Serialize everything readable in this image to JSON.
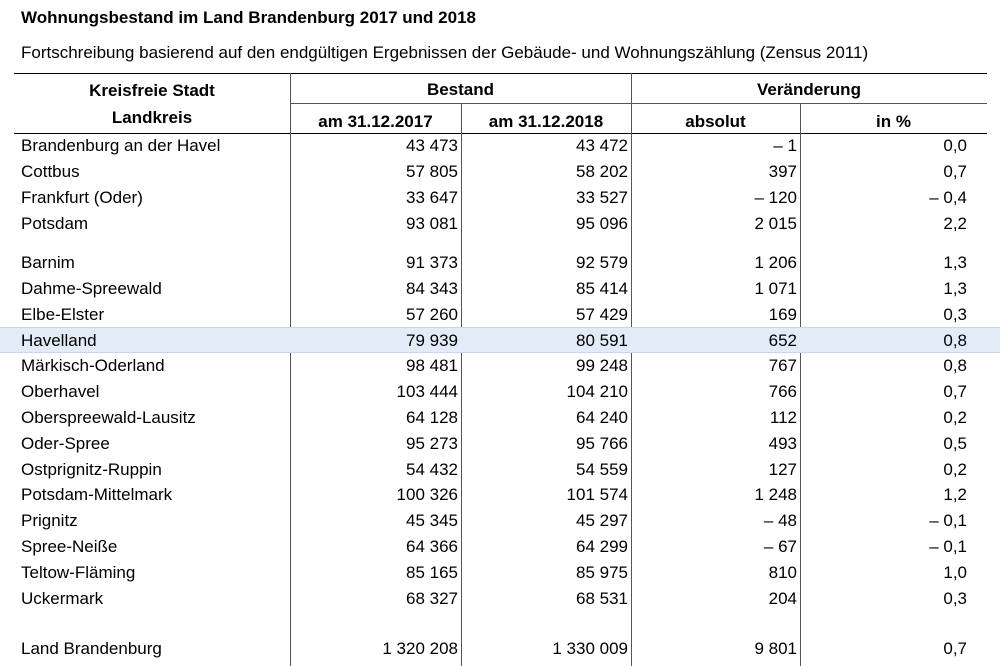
{
  "title": "Wohnungsbestand im Land Brandenburg 2017 und 2018",
  "subtitle": "Fortschreibung basierend auf den endgültigen Ergebnissen der Gebäude- und Wohnungszählung (Zensus 2011)",
  "header": {
    "stub_line1": "Kreisfreie Stadt",
    "stub_line2": "Landkreis",
    "group_bestand": "Bestand",
    "group_veraenderung": "Veränderung",
    "col_2017": "am 31.12.2017",
    "col_2018": "am 31.12.2018",
    "col_absolut": "absolut",
    "col_prozent": "in %"
  },
  "rows": [
    {
      "name": "Brandenburg an der Havel",
      "v2017": "43 473",
      "v2018": "43 472",
      "abs": "–  1",
      "pct": "0,0"
    },
    {
      "name": "Cottbus",
      "v2017": "57 805",
      "v2018": "58 202",
      "abs": "397",
      "pct": "0,7"
    },
    {
      "name": "Frankfurt (Oder)",
      "v2017": "33 647",
      "v2018": "33 527",
      "abs": "–  120",
      "pct": "–  0,4"
    },
    {
      "name": "Potsdam",
      "v2017": "93 081",
      "v2018": "95 096",
      "abs": "2 015",
      "pct": "2,2"
    },
    {
      "name": "Barnim",
      "v2017": "91 373",
      "v2018": "92 579",
      "abs": "1 206",
      "pct": "1,3"
    },
    {
      "name": "Dahme-Spreewald",
      "v2017": "84 343",
      "v2018": "85 414",
      "abs": "1 071",
      "pct": "1,3"
    },
    {
      "name": "Elbe-Elster",
      "v2017": "57 260",
      "v2018": "57 429",
      "abs": "169",
      "pct": "0,3"
    },
    {
      "name": "Havelland",
      "v2017": "79 939",
      "v2018": "80 591",
      "abs": "652",
      "pct": "0,8",
      "highlight": true
    },
    {
      "name": "Märkisch-Oderland",
      "v2017": "98 481",
      "v2018": "99 248",
      "abs": "767",
      "pct": "0,8"
    },
    {
      "name": "Oberhavel",
      "v2017": "103 444",
      "v2018": "104 210",
      "abs": "766",
      "pct": "0,7"
    },
    {
      "name": "Oberspreewald-Lausitz",
      "v2017": "64 128",
      "v2018": "64 240",
      "abs": "112",
      "pct": "0,2"
    },
    {
      "name": "Oder-Spree",
      "v2017": "95 273",
      "v2018": "95 766",
      "abs": "493",
      "pct": "0,5"
    },
    {
      "name": "Ostprignitz-Ruppin",
      "v2017": "54 432",
      "v2018": "54 559",
      "abs": "127",
      "pct": "0,2"
    },
    {
      "name": "Potsdam-Mittelmark",
      "v2017": "100 326",
      "v2018": "101 574",
      "abs": "1 248",
      "pct": "1,2"
    },
    {
      "name": "Prignitz",
      "v2017": "45 345",
      "v2018": "45 297",
      "abs": "–  48",
      "pct": "–  0,1"
    },
    {
      "name": "Spree-Neiße",
      "v2017": "64 366",
      "v2018": "64 299",
      "abs": "–  67",
      "pct": "–  0,1"
    },
    {
      "name": "Teltow-Fläming",
      "v2017": "85 165",
      "v2018": "85 975",
      "abs": "810",
      "pct": "1,0"
    },
    {
      "name": "Uckermark",
      "v2017": "68 327",
      "v2018": "68 531",
      "abs": "204",
      "pct": "0,3"
    },
    {
      "name": "Land Brandenburg",
      "v2017": "1 320 208",
      "v2018": "1 330 009",
      "abs": "9 801",
      "pct": "0,7"
    }
  ],
  "colors": {
    "highlight_row": "#e3ebf8",
    "rule": "#000000"
  }
}
